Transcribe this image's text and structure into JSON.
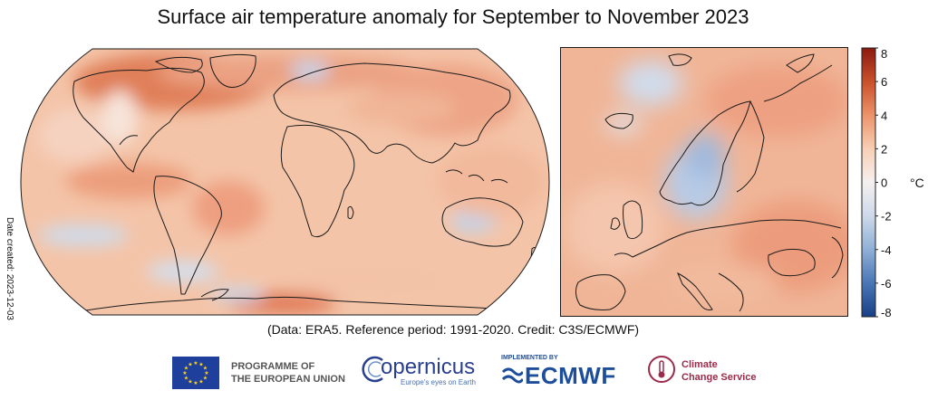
{
  "title": "Surface air temperature anomaly for September to November 2023",
  "date_created": "Date created: 2023-12-03",
  "credit": "(Data: ERA5.  Reference period: 1991-2020.  Credit: C3S/ECMWF)",
  "colorbar": {
    "ticks": [
      "8",
      "6",
      "4",
      "2",
      "0",
      "-2",
      "-4",
      "-6",
      "-8"
    ],
    "unit": "°C",
    "colors": [
      "#8a1a11",
      "#c9502a",
      "#ec936a",
      "#f7cfb5",
      "#f5f0ef",
      "#cdd9ea",
      "#8fb0d6",
      "#4a76b6",
      "#173f85"
    ]
  },
  "logos": {
    "eu_line1": "PROGRAMME OF",
    "eu_line2": "THE EUROPEAN UNION",
    "copernicus": "opernicus",
    "copernicus_tagline": "Europe's eyes on Earth",
    "ecmwf_tag": "IMPLEMENTED BY",
    "ecmwf": "ECMWF",
    "ccs_line1": "Climate",
    "ccs_line2": "Change Service"
  }
}
